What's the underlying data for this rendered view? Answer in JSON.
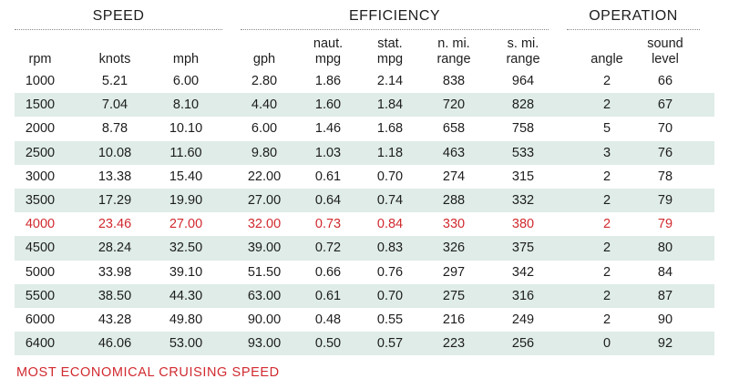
{
  "groups": {
    "speed": "SPEED",
    "efficiency": "EFFICIENCY",
    "operation": "OPERATION"
  },
  "columns": [
    "rpm",
    "knots",
    "mph",
    "gph",
    "naut.\nmpg",
    "stat.\nmpg",
    "n. mi.\nrange",
    "s. mi.\nrange",
    "angle",
    "sound\nlevel"
  ],
  "rows": [
    [
      "1000",
      "5.21",
      "6.00",
      "2.80",
      "1.86",
      "2.14",
      "838",
      "964",
      "2",
      "66"
    ],
    [
      "1500",
      "7.04",
      "8.10",
      "4.40",
      "1.60",
      "1.84",
      "720",
      "828",
      "2",
      "67"
    ],
    [
      "2000",
      "8.78",
      "10.10",
      "6.00",
      "1.46",
      "1.68",
      "658",
      "758",
      "5",
      "70"
    ],
    [
      "2500",
      "10.08",
      "11.60",
      "9.80",
      "1.03",
      "1.18",
      "463",
      "533",
      "3",
      "76"
    ],
    [
      "3000",
      "13.38",
      "15.40",
      "22.00",
      "0.61",
      "0.70",
      "274",
      "315",
      "2",
      "78"
    ],
    [
      "3500",
      "17.29",
      "19.90",
      "27.00",
      "0.64",
      "0.74",
      "288",
      "332",
      "2",
      "79"
    ],
    [
      "4000",
      "23.46",
      "27.00",
      "32.00",
      "0.73",
      "0.84",
      "330",
      "380",
      "2",
      "79"
    ],
    [
      "4500",
      "28.24",
      "32.50",
      "39.00",
      "0.72",
      "0.83",
      "326",
      "375",
      "2",
      "80"
    ],
    [
      "5000",
      "33.98",
      "39.10",
      "51.50",
      "0.66",
      "0.76",
      "297",
      "342",
      "2",
      "84"
    ],
    [
      "5500",
      "38.50",
      "44.30",
      "63.00",
      "0.61",
      "0.70",
      "275",
      "316",
      "2",
      "87"
    ],
    [
      "6000",
      "43.28",
      "49.80",
      "90.00",
      "0.48",
      "0.55",
      "216",
      "249",
      "2",
      "90"
    ],
    [
      "6400",
      "46.06",
      "53.00",
      "93.00",
      "0.50",
      "0.57",
      "223",
      "256",
      "0",
      "92"
    ]
  ],
  "highlight_row_rpm": "4000",
  "colors": {
    "highlight": "#d12a2f",
    "row_shade": "#dfece8",
    "text": "#1d1d1d"
  },
  "footnote": "MOST ECONOMICAL CRUISING SPEED"
}
